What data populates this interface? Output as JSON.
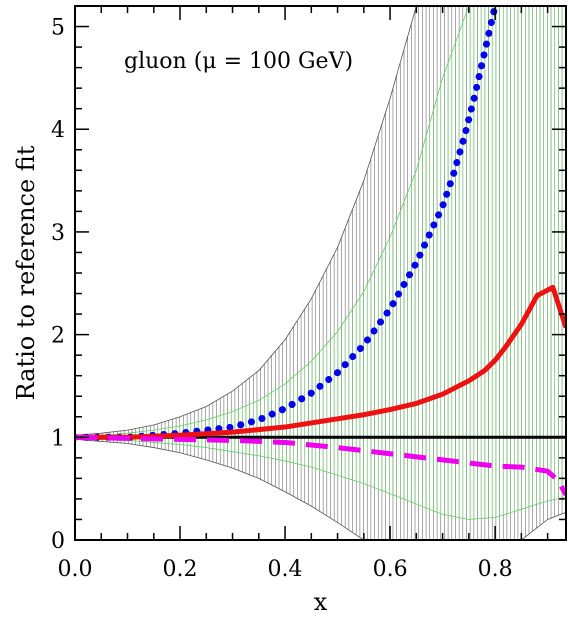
{
  "chart_data": {
    "type": "line",
    "annotation": "gluon (μ = 100 GeV)",
    "xlabel": "x",
    "ylabel": "Ratio to reference fit",
    "xlim": [
      0.0,
      0.935
    ],
    "ylim": [
      0,
      5.2
    ],
    "x_ticks": [
      "0.0",
      "0.2",
      "0.4",
      "0.6",
      "0.8"
    ],
    "x_tick_values": [
      0.0,
      0.2,
      0.4,
      0.6,
      0.8
    ],
    "y_ticks": [
      "0",
      "1",
      "2",
      "3",
      "4",
      "5"
    ],
    "y_tick_values": [
      0,
      1,
      2,
      3,
      4,
      5
    ],
    "grid": false,
    "legend": "none",
    "bands": [
      {
        "style": "hatched",
        "color": "#555555",
        "x": [
          0.0,
          0.05,
          0.1,
          0.15,
          0.2,
          0.25,
          0.3,
          0.35,
          0.4,
          0.45,
          0.5,
          0.55,
          0.6,
          0.65,
          0.7,
          0.75,
          0.8,
          0.85,
          0.9,
          0.935
        ],
        "upper": [
          1.02,
          1.04,
          1.07,
          1.12,
          1.2,
          1.3,
          1.45,
          1.65,
          1.95,
          2.35,
          2.85,
          3.5,
          4.3,
          5.2,
          5.2,
          5.2,
          5.2,
          5.2,
          5.2,
          5.2
        ],
        "lower": [
          0.98,
          0.96,
          0.94,
          0.9,
          0.85,
          0.78,
          0.7,
          0.6,
          0.47,
          0.33,
          0.17,
          0.0,
          0.0,
          0.0,
          0.0,
          0.0,
          0.0,
          0.0,
          0.2,
          0.27
        ]
      },
      {
        "style": "hatched",
        "color": "#66cc66",
        "x": [
          0.0,
          0.05,
          0.1,
          0.15,
          0.2,
          0.25,
          0.3,
          0.35,
          0.4,
          0.45,
          0.5,
          0.55,
          0.6,
          0.65,
          0.7,
          0.75,
          0.8,
          0.85,
          0.9,
          0.935
        ],
        "upper": [
          1.01,
          1.02,
          1.04,
          1.07,
          1.11,
          1.17,
          1.25,
          1.36,
          1.52,
          1.74,
          2.03,
          2.42,
          2.95,
          3.6,
          4.5,
          5.2,
          5.2,
          5.2,
          5.2,
          5.2
        ],
        "lower": [
          0.99,
          0.98,
          0.97,
          0.95,
          0.93,
          0.9,
          0.86,
          0.82,
          0.77,
          0.71,
          0.63,
          0.55,
          0.45,
          0.35,
          0.25,
          0.2,
          0.22,
          0.3,
          0.38,
          0.42
        ]
      }
    ],
    "series": [
      {
        "style": "solid-thin",
        "color": "#000000",
        "x": [
          0.0,
          0.935
        ],
        "y": [
          1.0,
          1.0
        ]
      },
      {
        "style": "dotted",
        "color": "#0000ee",
        "x": [
          0.0,
          0.1,
          0.2,
          0.3,
          0.35,
          0.4,
          0.45,
          0.5,
          0.55,
          0.6,
          0.65,
          0.7,
          0.72,
          0.74,
          0.76,
          0.78,
          0.8,
          0.81
        ],
        "y": [
          1.0,
          1.0,
          1.04,
          1.1,
          1.17,
          1.28,
          1.43,
          1.63,
          1.9,
          2.25,
          2.7,
          3.25,
          3.55,
          3.9,
          4.3,
          4.75,
          5.2,
          5.45
        ]
      },
      {
        "style": "solid-thick",
        "color": "#ee1111",
        "x": [
          0.0,
          0.1,
          0.2,
          0.3,
          0.4,
          0.5,
          0.55,
          0.6,
          0.65,
          0.7,
          0.75,
          0.78,
          0.8,
          0.82,
          0.85,
          0.88,
          0.91,
          0.935
        ],
        "y": [
          1.0,
          1.0,
          1.02,
          1.05,
          1.1,
          1.18,
          1.22,
          1.27,
          1.33,
          1.42,
          1.55,
          1.65,
          1.75,
          1.88,
          2.1,
          2.38,
          2.46,
          2.07
        ]
      },
      {
        "style": "dashed",
        "color": "#ee00ee",
        "x": [
          0.0,
          0.1,
          0.2,
          0.3,
          0.35,
          0.4,
          0.5,
          0.6,
          0.7,
          0.8,
          0.85,
          0.9,
          0.92,
          0.935
        ],
        "y": [
          1.0,
          0.99,
          0.98,
          0.97,
          0.96,
          0.95,
          0.9,
          0.84,
          0.78,
          0.72,
          0.71,
          0.67,
          0.58,
          0.44
        ]
      }
    ]
  }
}
